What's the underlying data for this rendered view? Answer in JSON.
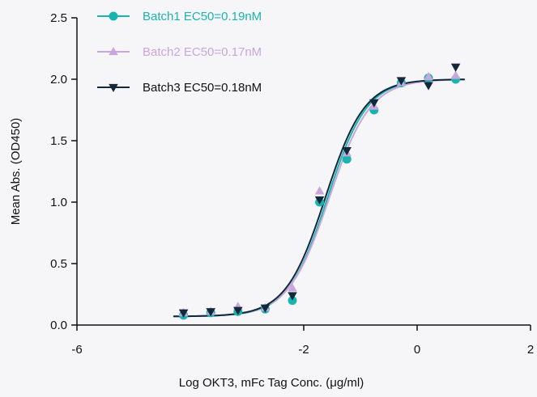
{
  "chart_data": {
    "type": "scatter",
    "xlabel": "Log OKT3, mFc Tag Conc. (μg/ml)",
    "ylabel": "Mean Abs. (OD450)",
    "xlim": [
      -6,
      2
    ],
    "ylim": [
      0,
      2.5
    ],
    "x_ticks": [
      "-6",
      "-2",
      "0",
      "2"
    ],
    "x_tick_values": [
      -6,
      -2,
      0,
      2
    ],
    "y_ticks": [
      "0.0",
      "0.5",
      "1.0",
      "1.5",
      "2.0",
      "2.5"
    ],
    "y_tick_values": [
      0,
      0.5,
      1.0,
      1.5,
      2.0,
      2.5
    ],
    "legend_position": "top-left",
    "x": [
      -4.12,
      -3.64,
      -3.16,
      -2.68,
      -2.2,
      -1.72,
      -1.24,
      -0.76,
      -0.28,
      0.2,
      0.68
    ],
    "series": [
      {
        "name": "Batch1 EC50=0.19nM",
        "color": "#1ab4b0",
        "marker": "circle",
        "values": [
          0.08,
          0.1,
          0.11,
          0.13,
          0.2,
          1.0,
          1.35,
          1.75,
          1.97,
          2.01,
          2.0
        ],
        "fit": {
          "bottom": 0.07,
          "top": 2.0,
          "logEC50": -1.58,
          "hill": 1.25
        }
      },
      {
        "name": "Batch2 EC50=0.17nM",
        "color": "#c9a6dc",
        "marker": "triangle-up",
        "values": [
          0.1,
          0.11,
          0.15,
          0.14,
          0.3,
          1.09,
          1.4,
          1.78,
          1.97,
          2.02,
          2.03
        ],
        "fit": {
          "bottom": 0.07,
          "top": 2.0,
          "logEC50": -1.55,
          "hill": 1.2
        }
      },
      {
        "name": "Batch3 EC50=0.18nM",
        "color": "#14283c",
        "marker": "triangle-down",
        "values": [
          0.1,
          0.11,
          0.12,
          0.14,
          0.24,
          1.02,
          1.42,
          1.81,
          1.99,
          1.95,
          2.1
        ],
        "fit": {
          "bottom": 0.07,
          "top": 2.0,
          "logEC50": -1.62,
          "hill": 1.25
        }
      }
    ]
  }
}
